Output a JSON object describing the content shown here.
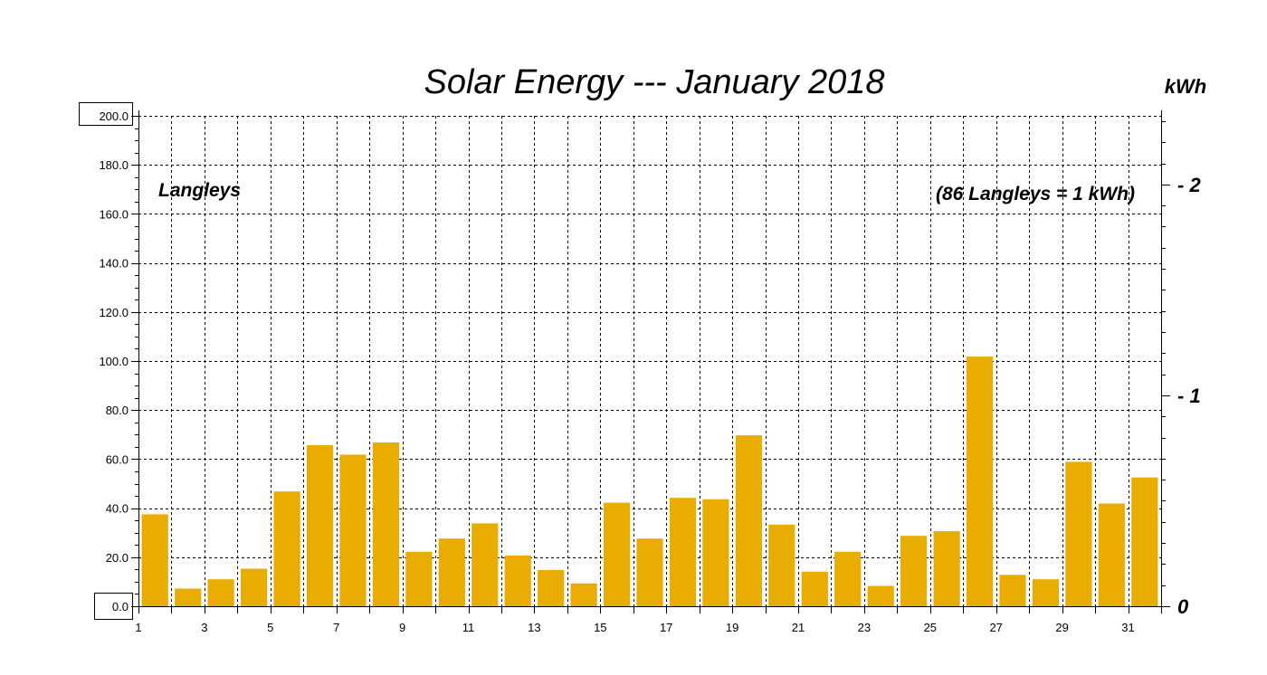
{
  "chart_data": {
    "type": "bar",
    "title": "Solar Energy --- January 2018",
    "ylabel": "Langleys",
    "y2label": "kWh",
    "annotation": "(86 Langleys = 1 kWh)",
    "x_tick_labels": [
      "1",
      "3",
      "5",
      "7",
      "9",
      "11",
      "13",
      "15",
      "17",
      "19",
      "21",
      "23",
      "25",
      "27",
      "29",
      "31"
    ],
    "y_tick_labels": [
      "0.0",
      "20.0",
      "40.0",
      "60.0",
      "80.0",
      "100.0",
      "120.0",
      "140.0",
      "160.0",
      "180.0",
      "200.0"
    ],
    "y2_tick_labels": [
      "0",
      "1",
      "2"
    ],
    "ylim": [
      0,
      200
    ],
    "y2lim": [
      0,
      2.3256
    ],
    "grid": true,
    "categories": [
      1,
      2,
      3,
      4,
      5,
      6,
      7,
      8,
      9,
      10,
      11,
      12,
      13,
      14,
      15,
      16,
      17,
      18,
      19,
      20,
      21,
      22,
      23,
      24,
      25,
      26,
      27,
      28,
      29,
      30,
      31
    ],
    "values": [
      37.5,
      7.2,
      11.0,
      15.3,
      46.8,
      65.7,
      61.8,
      66.8,
      22.2,
      27.6,
      33.8,
      20.7,
      14.8,
      9.3,
      42.2,
      27.6,
      44.2,
      43.6,
      69.7,
      33.3,
      14.1,
      22.2,
      8.3,
      28.7,
      30.6,
      101.8,
      12.8,
      11.0,
      58.9,
      41.9,
      52.5
    ],
    "bar_color": "#e8ad00"
  }
}
